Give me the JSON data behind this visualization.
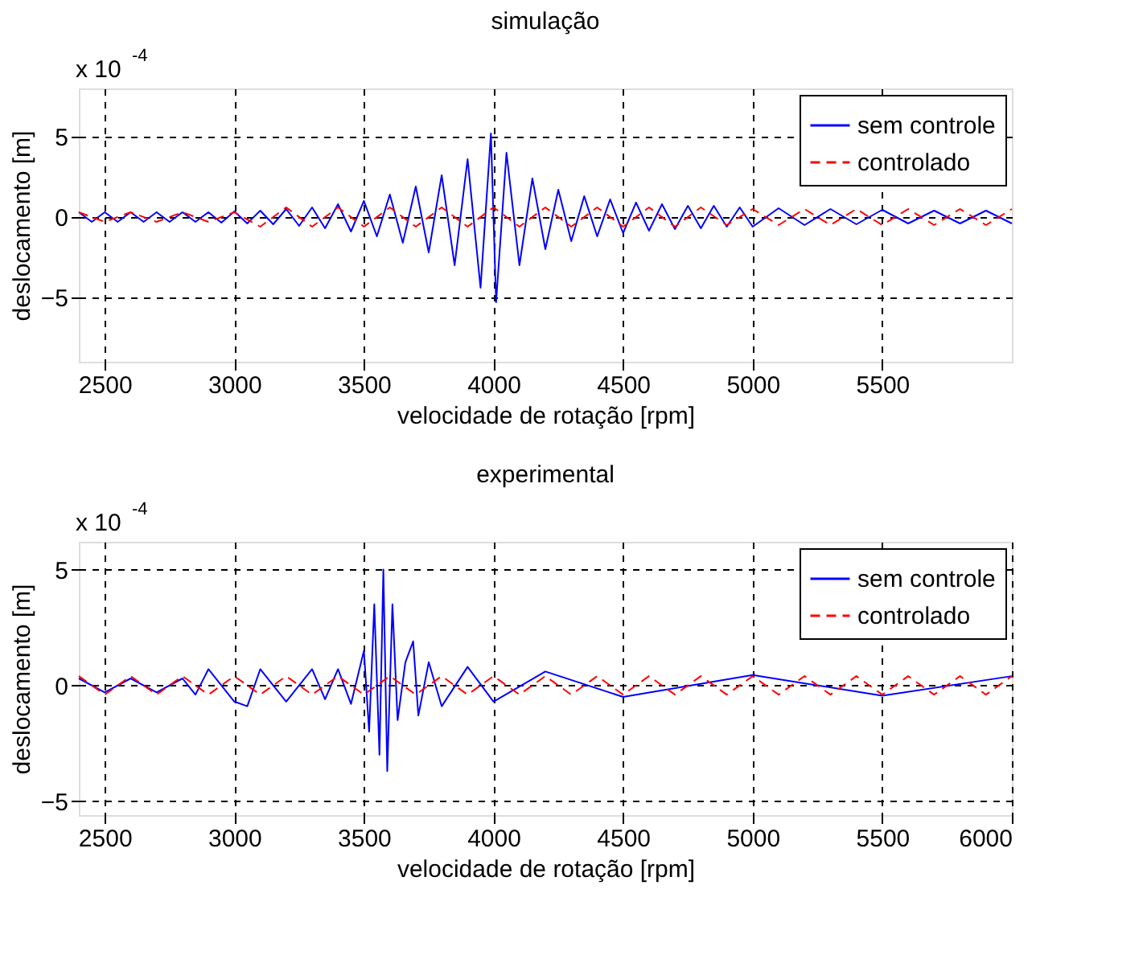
{
  "chart_data": [
    {
      "type": "line",
      "title": "simulação",
      "xlabel": "velocidade de rotação [rpm]",
      "ylabel": "deslocamento [m]",
      "annotations": [
        "x 10$^{-4}$"
      ],
      "xlim": [
        2400,
        6000
      ],
      "xticks": [
        2500,
        3000,
        3500,
        4000,
        4500,
        5000,
        5500
      ],
      "ylim": [
        -9,
        8
      ],
      "yticks": [
        -5,
        0,
        5
      ],
      "grid": true,
      "legend": "top right",
      "marker": "none",
      "series": [
        {
          "name": "sem controle",
          "color": "#0000ff",
          "line_style": "solid",
          "x": [
            2400,
            2450,
            2500,
            2550,
            2600,
            2650,
            2700,
            2750,
            2800,
            2850,
            2900,
            2950,
            3000,
            3050,
            3100,
            3150,
            3200,
            3250,
            3300,
            3350,
            3400,
            3450,
            3500,
            3550,
            3600,
            3650,
            3700,
            3750,
            3800,
            3850,
            3900,
            3950,
            3990,
            4010,
            4050,
            4100,
            4150,
            4200,
            4250,
            4300,
            4350,
            4400,
            4450,
            4500,
            4550,
            4600,
            4650,
            4700,
            4750,
            4800,
            4850,
            4900,
            4950,
            5000,
            5100,
            5200,
            5300,
            5400,
            5500,
            5600,
            5700,
            5800,
            5900,
            6000
          ],
          "values": [
            0.3,
            -0.3,
            0.3,
            -0.3,
            0.3,
            -0.3,
            0.3,
            -0.3,
            0.3,
            -0.3,
            0.3,
            -0.35,
            0.35,
            -0.4,
            0.4,
            -0.45,
            0.5,
            -0.55,
            0.6,
            -0.7,
            0.8,
            -0.9,
            1.0,
            -1.2,
            1.4,
            -1.6,
            1.9,
            -2.2,
            2.6,
            -3.0,
            3.6,
            -4.4,
            5.2,
            -5.3,
            4.0,
            -3.0,
            2.4,
            -2.0,
            1.7,
            -1.5,
            1.3,
            -1.2,
            1.1,
            -1.0,
            0.9,
            -0.85,
            0.8,
            -0.75,
            0.7,
            -0.7,
            0.7,
            -0.6,
            0.6,
            -0.6,
            0.55,
            -0.5,
            0.5,
            -0.45,
            0.45,
            -0.4,
            0.4,
            -0.4,
            0.4,
            -0.4
          ]
        },
        {
          "name": "controlado",
          "color": "#ff0000",
          "line_style": "dashed",
          "x": [
            2400,
            2500,
            2600,
            2700,
            2800,
            2900,
            3000,
            3100,
            3200,
            3300,
            3400,
            3500,
            3600,
            3700,
            3800,
            3900,
            4000,
            4100,
            4200,
            4300,
            4400,
            4500,
            4600,
            4700,
            4800,
            4900,
            5000,
            5100,
            5200,
            5300,
            5400,
            5500,
            5600,
            5700,
            5800,
            5900,
            6000
          ],
          "values": [
            0.3,
            -0.3,
            0.3,
            -0.3,
            0.3,
            -0.3,
            0.3,
            -0.6,
            0.6,
            -0.6,
            0.6,
            -0.6,
            0.6,
            -0.6,
            0.6,
            -0.6,
            0.6,
            -0.6,
            0.6,
            -0.6,
            0.6,
            -0.6,
            0.6,
            -0.6,
            0.6,
            -0.5,
            0.5,
            -0.5,
            0.5,
            -0.5,
            0.5,
            -0.5,
            0.5,
            -0.5,
            0.5,
            -0.5,
            0.5
          ]
        }
      ]
    },
    {
      "type": "line",
      "title": "experimental",
      "xlabel": "velocidade de rotação [rpm]",
      "ylabel": "deslocamento [m]",
      "annotations": [
        "x 10$^{-4}$"
      ],
      "xlim": [
        2400,
        6000
      ],
      "xticks": [
        2500,
        3000,
        3500,
        4000,
        4500,
        5000,
        5500,
        6000
      ],
      "ylim": [
        -5.6,
        6.2
      ],
      "yticks": [
        -5,
        0,
        5
      ],
      "grid": true,
      "legend": "top right",
      "marker": "none",
      "series": [
        {
          "name": "sem controle",
          "color": "#0000ff",
          "line_style": "solid",
          "x": [
            2400,
            2500,
            2600,
            2700,
            2800,
            2850,
            2900,
            3000,
            3050,
            3100,
            3200,
            3300,
            3350,
            3400,
            3450,
            3500,
            3520,
            3540,
            3560,
            3575,
            3590,
            3610,
            3630,
            3660,
            3690,
            3710,
            3750,
            3800,
            3900,
            4000,
            4200,
            4500,
            5000,
            5500,
            6000
          ],
          "values": [
            0.3,
            -0.3,
            0.3,
            -0.3,
            0.3,
            -0.4,
            0.7,
            -0.7,
            -0.9,
            0.7,
            -0.7,
            0.7,
            -0.6,
            0.7,
            -0.8,
            1.5,
            -2.0,
            3.5,
            -3.0,
            5.0,
            -3.7,
            3.5,
            -1.5,
            1.0,
            1.9,
            -1.3,
            1.0,
            -0.9,
            0.8,
            -0.7,
            0.6,
            -0.5,
            0.45,
            -0.45,
            0.4
          ]
        },
        {
          "name": "controlado",
          "color": "#ff0000",
          "line_style": "dashed",
          "x": [
            2400,
            2500,
            2600,
            2700,
            2800,
            2900,
            3000,
            3100,
            3200,
            3300,
            3400,
            3500,
            3600,
            3700,
            3800,
            3900,
            4000,
            4100,
            4200,
            4300,
            4400,
            4500,
            4600,
            4700,
            4800,
            4900,
            5000,
            5100,
            5200,
            5300,
            5400,
            5500,
            5600,
            5700,
            5800,
            5900,
            6000
          ],
          "values": [
            0.4,
            -0.4,
            0.4,
            -0.4,
            0.4,
            -0.4,
            0.4,
            -0.4,
            0.4,
            -0.4,
            0.4,
            -0.4,
            0.4,
            -0.4,
            0.4,
            -0.4,
            0.4,
            -0.4,
            0.4,
            -0.4,
            0.4,
            -0.4,
            0.4,
            -0.4,
            0.4,
            -0.4,
            0.4,
            -0.4,
            0.4,
            -0.4,
            0.4,
            -0.4,
            0.4,
            -0.4,
            0.4,
            -0.4,
            0.4
          ]
        }
      ]
    }
  ]
}
